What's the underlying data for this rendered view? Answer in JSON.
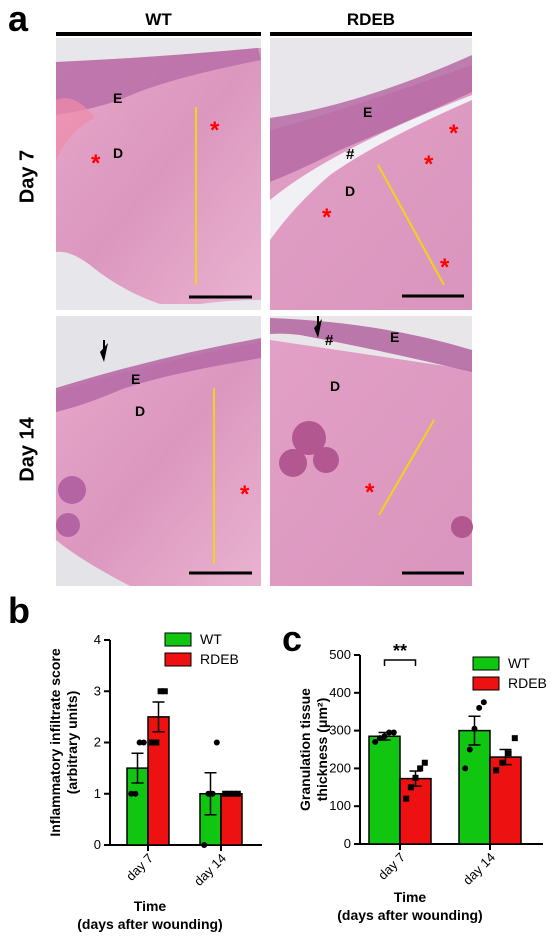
{
  "figure": {
    "panel_a": {
      "letter": "a",
      "columns": [
        "WT",
        "RDEB"
      ],
      "rows": [
        "Day 7",
        "Day 14"
      ],
      "micrographs": [
        {
          "row": "Day 7",
          "col": "WT",
          "labels": [
            "E",
            "D"
          ],
          "asterisks": 2,
          "hash": 0,
          "arrow": false
        },
        {
          "row": "Day 7",
          "col": "RDEB",
          "labels": [
            "E",
            "D"
          ],
          "asterisks": 4,
          "hash": 1,
          "arrow": false
        },
        {
          "row": "Day 14",
          "col": "WT",
          "labels": [
            "E",
            "D"
          ],
          "asterisks": 1,
          "hash": 0,
          "arrow": true
        },
        {
          "row": "Day 14",
          "col": "RDEB",
          "labels": [
            "E",
            "D"
          ],
          "asterisks": 1,
          "hash": 1,
          "arrow": true
        }
      ],
      "symbols": {
        "asterisk": "*",
        "hash": "#"
      }
    },
    "panel_b_letter": "b",
    "panel_c_letter": "c",
    "colors": {
      "wt": "#11c611",
      "rdeb": "#ee1111",
      "marker": "#000000",
      "annotation": "#ff0000",
      "scale_line": "#f2d21a"
    }
  },
  "chart_data": [
    {
      "type": "bar",
      "panel": "b",
      "categories": [
        "day 7",
        "day 14"
      ],
      "series": [
        {
          "name": "WT",
          "values": [
            1.5,
            1.0
          ],
          "sem": [
            0.29,
            0.41
          ],
          "points": [
            [
              1,
              1,
              2,
              2
            ],
            [
              0,
              1,
              1,
              2
            ]
          ]
        },
        {
          "name": "RDEB",
          "values": [
            2.5,
            1.0
          ],
          "sem": [
            0.29,
            0.0
          ],
          "points": [
            [
              2,
              2,
              3,
              3
            ],
            [
              1,
              1,
              1,
              1
            ]
          ]
        }
      ],
      "ylabel": "Inflammatory infiltrate score\n(arbitrary units)",
      "xlabel": "Time\n(days after wounding)",
      "ylim": [
        0,
        4
      ],
      "yticks": [
        0,
        1,
        2,
        3,
        4
      ],
      "legend": "top-right"
    },
    {
      "type": "bar",
      "panel": "c",
      "categories": [
        "day 7",
        "day 14"
      ],
      "series": [
        {
          "name": "WT",
          "values": [
            285,
            300
          ],
          "sem": [
            10,
            38
          ],
          "points": [
            [
              270,
              280,
              285,
              295,
              295
            ],
            [
              200,
              250,
              305,
              360,
              375
            ]
          ]
        },
        {
          "name": "RDEB",
          "values": [
            173,
            230
          ],
          "sem": [
            20,
            20
          ],
          "points": [
            [
              120,
              150,
              175,
              200,
              215
            ],
            [
              195,
              215,
              240,
              280
            ]
          ]
        }
      ],
      "significance": [
        {
          "category": "day 7",
          "label": "**"
        }
      ],
      "ylabel": "Granulation tissue\nthickness (μm²)",
      "xlabel": "Time\n(days after wounding)",
      "ylim": [
        0,
        500
      ],
      "yticks": [
        0,
        100,
        200,
        300,
        400,
        500
      ],
      "legend": "top-right"
    }
  ]
}
